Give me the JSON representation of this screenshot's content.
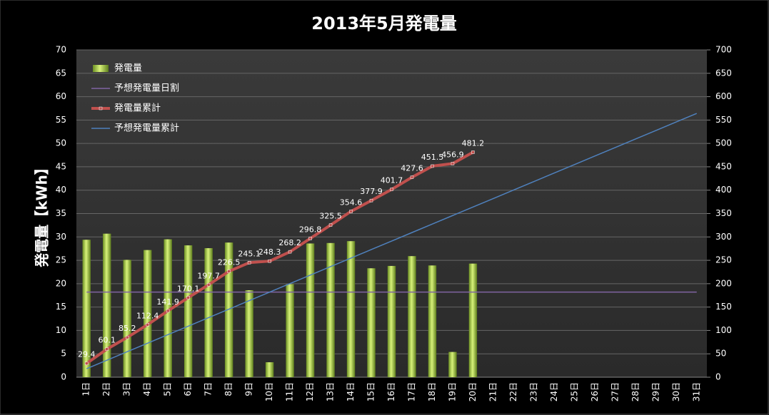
{
  "chart_data": {
    "type": "combo",
    "title": "2013年5月発電量",
    "y_label": "発電量【kWh】",
    "categories": [
      "1日",
      "2日",
      "3日",
      "4日",
      "5日",
      "6日",
      "7日",
      "8日",
      "9日",
      "10日",
      "11日",
      "12日",
      "13日",
      "14日",
      "15日",
      "16日",
      "17日",
      "18日",
      "19日",
      "20日",
      "21日",
      "22日",
      "23日",
      "24日",
      "25日",
      "26日",
      "27日",
      "28日",
      "29日",
      "30日",
      "31日"
    ],
    "ylim": [
      0,
      70
    ],
    "yticks": [
      0,
      5,
      10,
      15,
      20,
      25,
      30,
      35,
      40,
      45,
      50,
      55,
      60,
      65,
      70
    ],
    "y2lim": [
      0,
      700
    ],
    "y2ticks": [
      0,
      50,
      100,
      150,
      200,
      250,
      300,
      350,
      400,
      450,
      500,
      550,
      600,
      650,
      700
    ],
    "grid": true,
    "legend": "top-left",
    "series": [
      {
        "name": "発電量",
        "kind": "bar",
        "color": "#9acd32",
        "axis": "y",
        "values": [
          29.4,
          30.7,
          25.1,
          27.2,
          29.5,
          28.2,
          27.6,
          28.8,
          18.6,
          3.2,
          19.9,
          28.6,
          28.7,
          29.1,
          23.3,
          23.8,
          25.9,
          23.9,
          5.4,
          24.3,
          null,
          null,
          null,
          null,
          null,
          null,
          null,
          null,
          null,
          null,
          null
        ]
      },
      {
        "name": "予想発電量日割",
        "kind": "line",
        "color": "#8064a2",
        "axis": "y",
        "values": [
          18.2,
          18.2,
          18.2,
          18.2,
          18.2,
          18.2,
          18.2,
          18.2,
          18.2,
          18.2,
          18.2,
          18.2,
          18.2,
          18.2,
          18.2,
          18.2,
          18.2,
          18.2,
          18.2,
          18.2,
          18.2,
          18.2,
          18.2,
          18.2,
          18.2,
          18.2,
          18.2,
          18.2,
          18.2,
          18.2,
          18.2
        ]
      },
      {
        "name": "発電量累計",
        "kind": "line",
        "color": "#c0504d",
        "axis": "y2",
        "markers": true,
        "data_labels": true,
        "values": [
          29.4,
          60.1,
          85.2,
          112.4,
          141.9,
          170.1,
          197.7,
          226.5,
          245.1,
          248.3,
          268.2,
          296.8,
          325.5,
          354.6,
          377.9,
          401.7,
          427.6,
          451.5,
          456.9,
          481.2,
          null,
          null,
          null,
          null,
          null,
          null,
          null,
          null,
          null,
          null,
          null
        ]
      },
      {
        "name": "予想発電量累計",
        "kind": "line",
        "color": "#4f81bd",
        "axis": "y2",
        "values": [
          18.2,
          36.4,
          54.6,
          72.8,
          91,
          109.2,
          127.4,
          145.6,
          163.8,
          182,
          200.2,
          218.4,
          236.6,
          254.8,
          273,
          291.2,
          309.4,
          327.6,
          345.8,
          364,
          382.2,
          400.4,
          418.6,
          436.8,
          455,
          473.2,
          491.4,
          509.6,
          527.8,
          546,
          564.2
        ]
      }
    ]
  }
}
